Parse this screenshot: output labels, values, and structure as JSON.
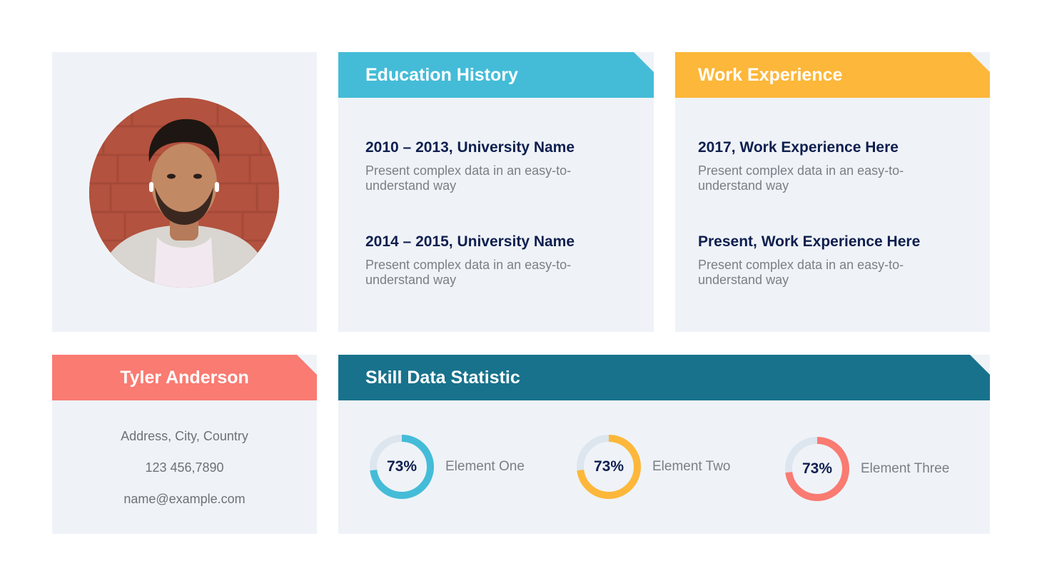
{
  "profile": {
    "name": "Tyler Anderson",
    "address": "Address, City, Country",
    "phone": "123 456,7890",
    "email": "name@example.com"
  },
  "education": {
    "title": "Education History",
    "entries": [
      {
        "heading": "2010 – 2013, University Name",
        "description": "Present complex data in an easy-to-understand way"
      },
      {
        "heading": "2014 – 2015, University Name",
        "description": "Present complex data in an easy-to-understand way"
      }
    ]
  },
  "work": {
    "title": "Work Experience",
    "entries": [
      {
        "heading": "2017, Work Experience Here",
        "description": "Present complex data in an easy-to-understand way"
      },
      {
        "heading": "Present, Work Experience Here",
        "description": "Present complex data in an easy-to-understand way"
      }
    ]
  },
  "skills": {
    "title": "Skill Data Statistic",
    "items": [
      {
        "label": "Element One",
        "value_text": "73%",
        "value": 0.73,
        "color": "#44bcd8"
      },
      {
        "label": "Element Two",
        "value_text": "73%",
        "value": 0.73,
        "color": "#fdb73a"
      },
      {
        "label": "Element Three",
        "value_text": "73%",
        "value": 0.73,
        "color": "#f97b72"
      }
    ]
  },
  "colors": {
    "education_header": "#44bcd8",
    "work_header": "#fdb73a",
    "name_header": "#f97b72",
    "skill_header": "#18728c",
    "panel_bg": "#eff3f7",
    "donut_track": "#dde5ee"
  }
}
